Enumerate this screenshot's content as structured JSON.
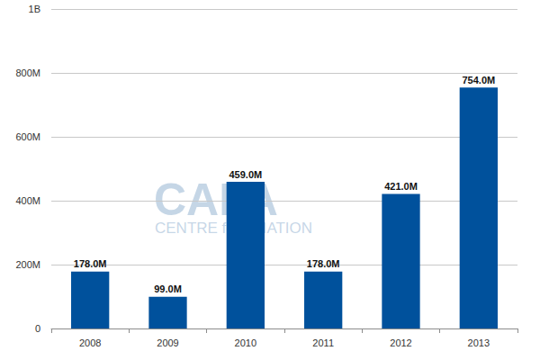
{
  "chart_data": {
    "type": "bar",
    "categories": [
      "2008",
      "2009",
      "2010",
      "2011",
      "2012",
      "2013"
    ],
    "values": [
      178000000,
      99000000,
      459000000,
      178000000,
      421000000,
      754000000
    ],
    "value_labels": [
      "178.0M",
      "99.0M",
      "459.0M",
      "178.0M",
      "421.0M",
      "754.0M"
    ],
    "color": "#00519c",
    "ylim": [
      0,
      1000000000
    ],
    "yticks": [
      0,
      {
        "value": 200000000,
        "label": "200M"
      },
      {
        "value": 400000000,
        "label": "400M"
      },
      {
        "value": 600000000,
        "label": "600M"
      },
      {
        "value": 800000000,
        "label": "800M"
      },
      {
        "value": 1000000000,
        "label": "1B"
      }
    ],
    "grid": true,
    "data_labels": true,
    "annotations": [
      "CAPA",
      "CENTRE for AVIATION"
    ]
  }
}
